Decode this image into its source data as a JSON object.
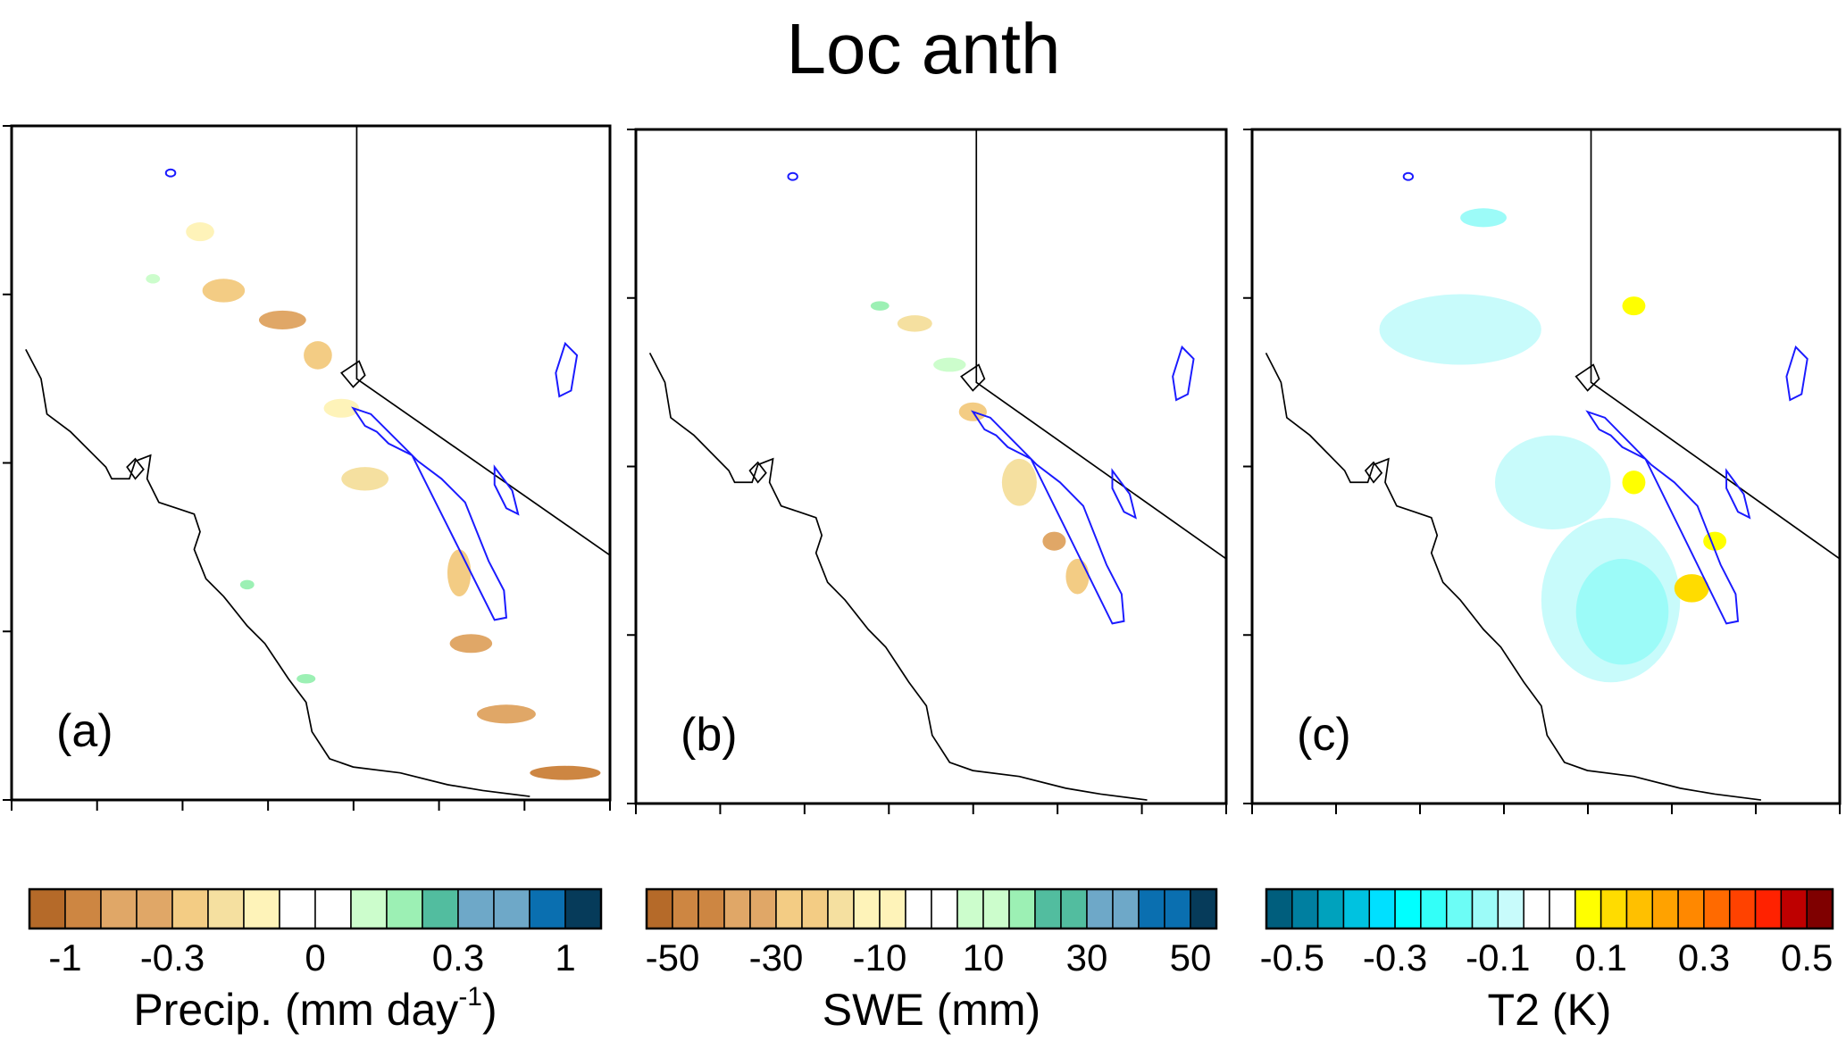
{
  "title": "Loc anth",
  "chart_data": [
    {
      "type": "heatmap",
      "panel_label": "(a)",
      "variable": "Precip.",
      "colorbar_label": "Precip. (mm day",
      "colorbar_label_sup": "-1",
      "colorbar_label_end": ")",
      "tick_labels": [
        "-1",
        "-0.3",
        "0",
        "0.3",
        "1"
      ],
      "tick_box_index": [
        1,
        4,
        8,
        12,
        15
      ],
      "colors": [
        "#b56a29",
        "#cd8642",
        "#e0a767",
        "#e0a767",
        "#f3cc84",
        "#f5e0a0",
        "#fef3b9",
        "#ffffff",
        "#ffffff",
        "#ccfdcc",
        "#9cf0b4",
        "#52bd9f",
        "#6ea8c8",
        "#6ea8c8",
        "#0a6fb0",
        "#063b5a"
      ]
    },
    {
      "type": "heatmap",
      "panel_label": "(b)",
      "variable": "SWE",
      "colorbar_label": "SWE (mm)",
      "tick_labels": [
        "-50",
        "-30",
        "-10",
        "10",
        "30",
        "50"
      ],
      "tick_box_index": [
        1,
        5,
        9,
        13,
        17,
        21
      ],
      "colors": [
        "#b56a29",
        "#cd8642",
        "#cd8642",
        "#e0a767",
        "#e0a767",
        "#f3cc84",
        "#f3cc84",
        "#f5e0a0",
        "#fef3b9",
        "#fef3b9",
        "#ffffff",
        "#ffffff",
        "#ccfdcc",
        "#ccfdcc",
        "#9cf0b4",
        "#52bd9f",
        "#52bd9f",
        "#6ea8c8",
        "#6ea8c8",
        "#0a6fb0",
        "#0a6fb0",
        "#063b5a"
      ]
    },
    {
      "type": "heatmap",
      "panel_label": "(c)",
      "variable": "T2",
      "colorbar_label": "T2 (K)",
      "tick_labels": [
        "-0.5",
        "-0.3",
        "-0.1",
        "0.1",
        "0.3",
        "0.5"
      ],
      "tick_box_index": [
        1,
        5,
        9,
        13,
        17,
        21
      ],
      "colors": [
        "#005e7d",
        "#007fa0",
        "#00a2bd",
        "#00c2e0",
        "#00e0ff",
        "#00ffff",
        "#33fff8",
        "#6cfdf6",
        "#9cfbf8",
        "#c8fbfb",
        "#ffffff",
        "#ffffff",
        "#ffff00",
        "#ffdc00",
        "#ffc000",
        "#ffa200",
        "#ff8800",
        "#ff6a00",
        "#ff4200",
        "#ff2200",
        "#be0000",
        "#7f0000"
      ]
    }
  ]
}
